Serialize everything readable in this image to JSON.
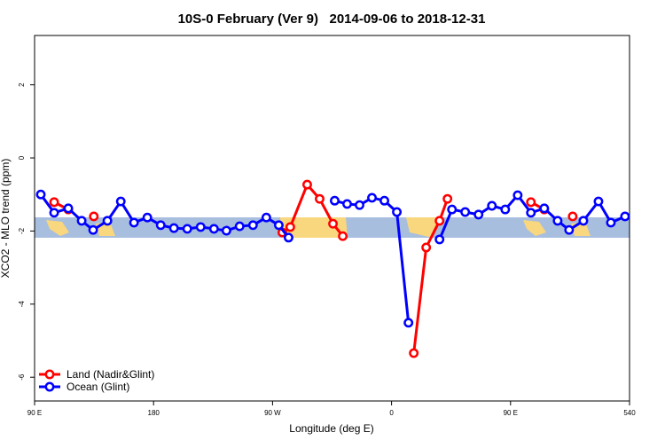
{
  "chart_data": {
    "type": "line",
    "title": "10S-0 February (Ver 9)   2014-09-06 to 2018-12-31",
    "xlabel": "Longitude (deg E)",
    "ylabel": "XCO2 - MLO trend (ppm)",
    "xlim": [
      90,
      540
    ],
    "ylim": [
      -6.65,
      3.35
    ],
    "xticks": [
      {
        "value": 90,
        "label": "90 E"
      },
      180,
      {
        "value": 270,
        "label": "90 W"
      },
      {
        "value": 360,
        "label": "0"
      },
      {
        "value": 450,
        "label": "90 E"
      },
      540
    ],
    "yticks": [
      -6,
      -4,
      -2,
      0,
      2
    ],
    "legend": "bottom-left",
    "series": [
      {
        "name": "Land (Nadir&Glint)",
        "color": "#ff0000",
        "x": [
          104.8,
          115.5,
          null,
          134.8,
          null,
          277.4,
          283.4,
          296.2,
          305.6,
          315.7,
          323.1,
          null,
          376.8,
          386.2,
          396.3,
          402.3,
          null,
          465.4,
          475.5,
          null,
          497.0
        ],
        "values": [
          -1.21,
          -1.41,
          null,
          -1.6,
          null,
          -2.04,
          -1.89,
          -0.73,
          -1.12,
          -1.8,
          -2.14,
          null,
          -5.34,
          -2.45,
          -1.72,
          -1.12,
          null,
          -1.21,
          -1.41,
          null,
          -1.6
        ]
      },
      {
        "name": "Ocean (Glint)",
        "color": "#0000ff",
        "x": [
          94.7,
          104.8,
          115.5,
          125.6,
          134.3,
          145.1,
          155.2,
          165.2,
          175.3,
          185.4,
          195.4,
          205.5,
          215.6,
          225.7,
          235.1,
          245.1,
          255.2,
          265.3,
          274.7,
          282.1,
          null,
          317.0,
          326.4,
          335.8,
          345.2,
          354.6,
          364.0,
          372.8,
          null,
          396.3,
          405.7,
          415.7,
          425.8,
          435.9,
          446.0,
          455.4,
          465.4,
          475.5,
          485.6,
          494.3,
          505.1,
          516.5,
          525.9,
          536.6
        ],
        "values": [
          -1.0,
          -1.5,
          -1.38,
          -1.72,
          -1.97,
          -1.72,
          -1.19,
          -1.77,
          -1.63,
          -1.84,
          -1.92,
          -1.94,
          -1.89,
          -1.94,
          -1.99,
          -1.87,
          -1.84,
          -1.63,
          -1.84,
          -2.18,
          null,
          -1.17,
          -1.26,
          -1.29,
          -1.09,
          -1.17,
          -1.48,
          -4.51,
          null,
          -2.23,
          -1.41,
          -1.48,
          -1.55,
          -1.31,
          -1.41,
          -1.02,
          -1.5,
          -1.38,
          -1.72,
          -1.97,
          -1.72,
          -1.19,
          -1.77,
          -1.6
        ]
      }
    ]
  }
}
